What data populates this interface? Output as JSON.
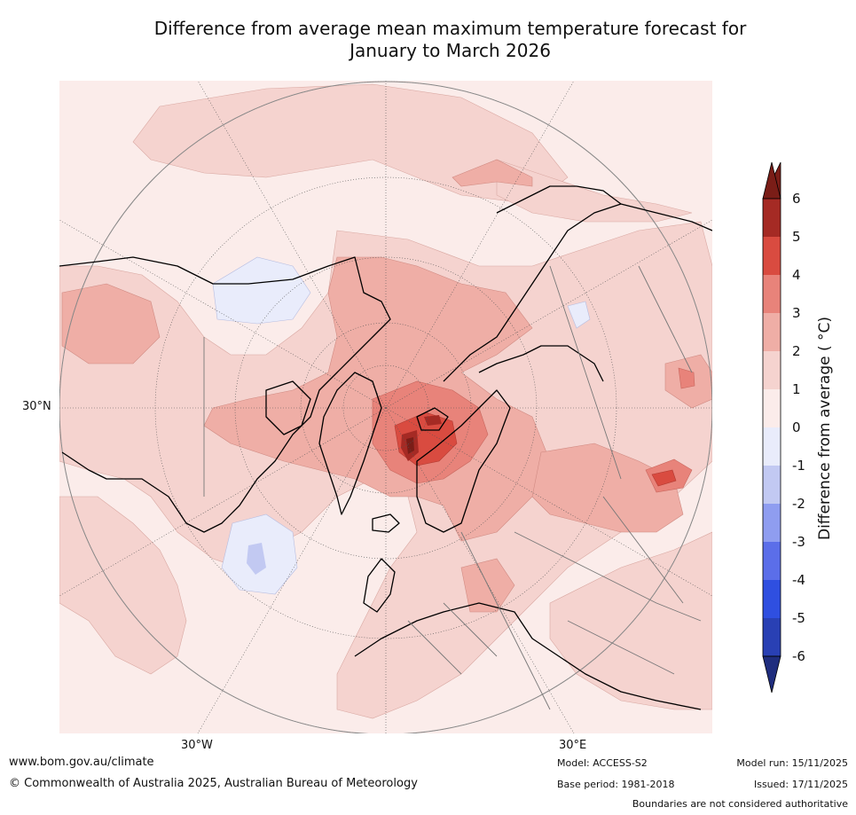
{
  "title_line1": "Difference from average mean maximum temperature forecast for",
  "title_line2": "January to March 2026",
  "graticule_labels": {
    "lat_30n": "30°N",
    "lon_30w": "30°W",
    "lon_30e": "30°E"
  },
  "colorbar": {
    "label": "Difference from average ( °C)",
    "ticks": [
      "6",
      "5",
      "4",
      "3",
      "2",
      "1",
      "0",
      "-1",
      "-2",
      "-3",
      "-4",
      "-5",
      "-6"
    ],
    "colors": {
      "above_6": "#7a1d17",
      "5_6": "#a52a24",
      "4_5": "#d94b40",
      "3_4": "#e8837a",
      "2_3": "#efaea6",
      "1_2": "#f5d3cf",
      "0_1": "#fbecea",
      "m1_0": "#e9ecfb",
      "m2_m1": "#c2c9f2",
      "m3_m2": "#8f9df0",
      "m4_m3": "#5b6ee9",
      "m5_m4": "#2f4fe0",
      "m6_m5": "#2940b4",
      "below_m6": "#1f2d7e"
    }
  },
  "footer": {
    "website": "www.bom.gov.au/climate",
    "copyright": "© Commonwealth of Australia 2025, Australian Bureau of Meteorology",
    "model": "Model: ACCESS-S2",
    "base_period": "Base period: 1981-2018",
    "model_run": "Model run: 15/11/2025",
    "issued": "Issued: 17/11/2025",
    "disclaimer": "Boundaries are not considered authoritative"
  }
}
